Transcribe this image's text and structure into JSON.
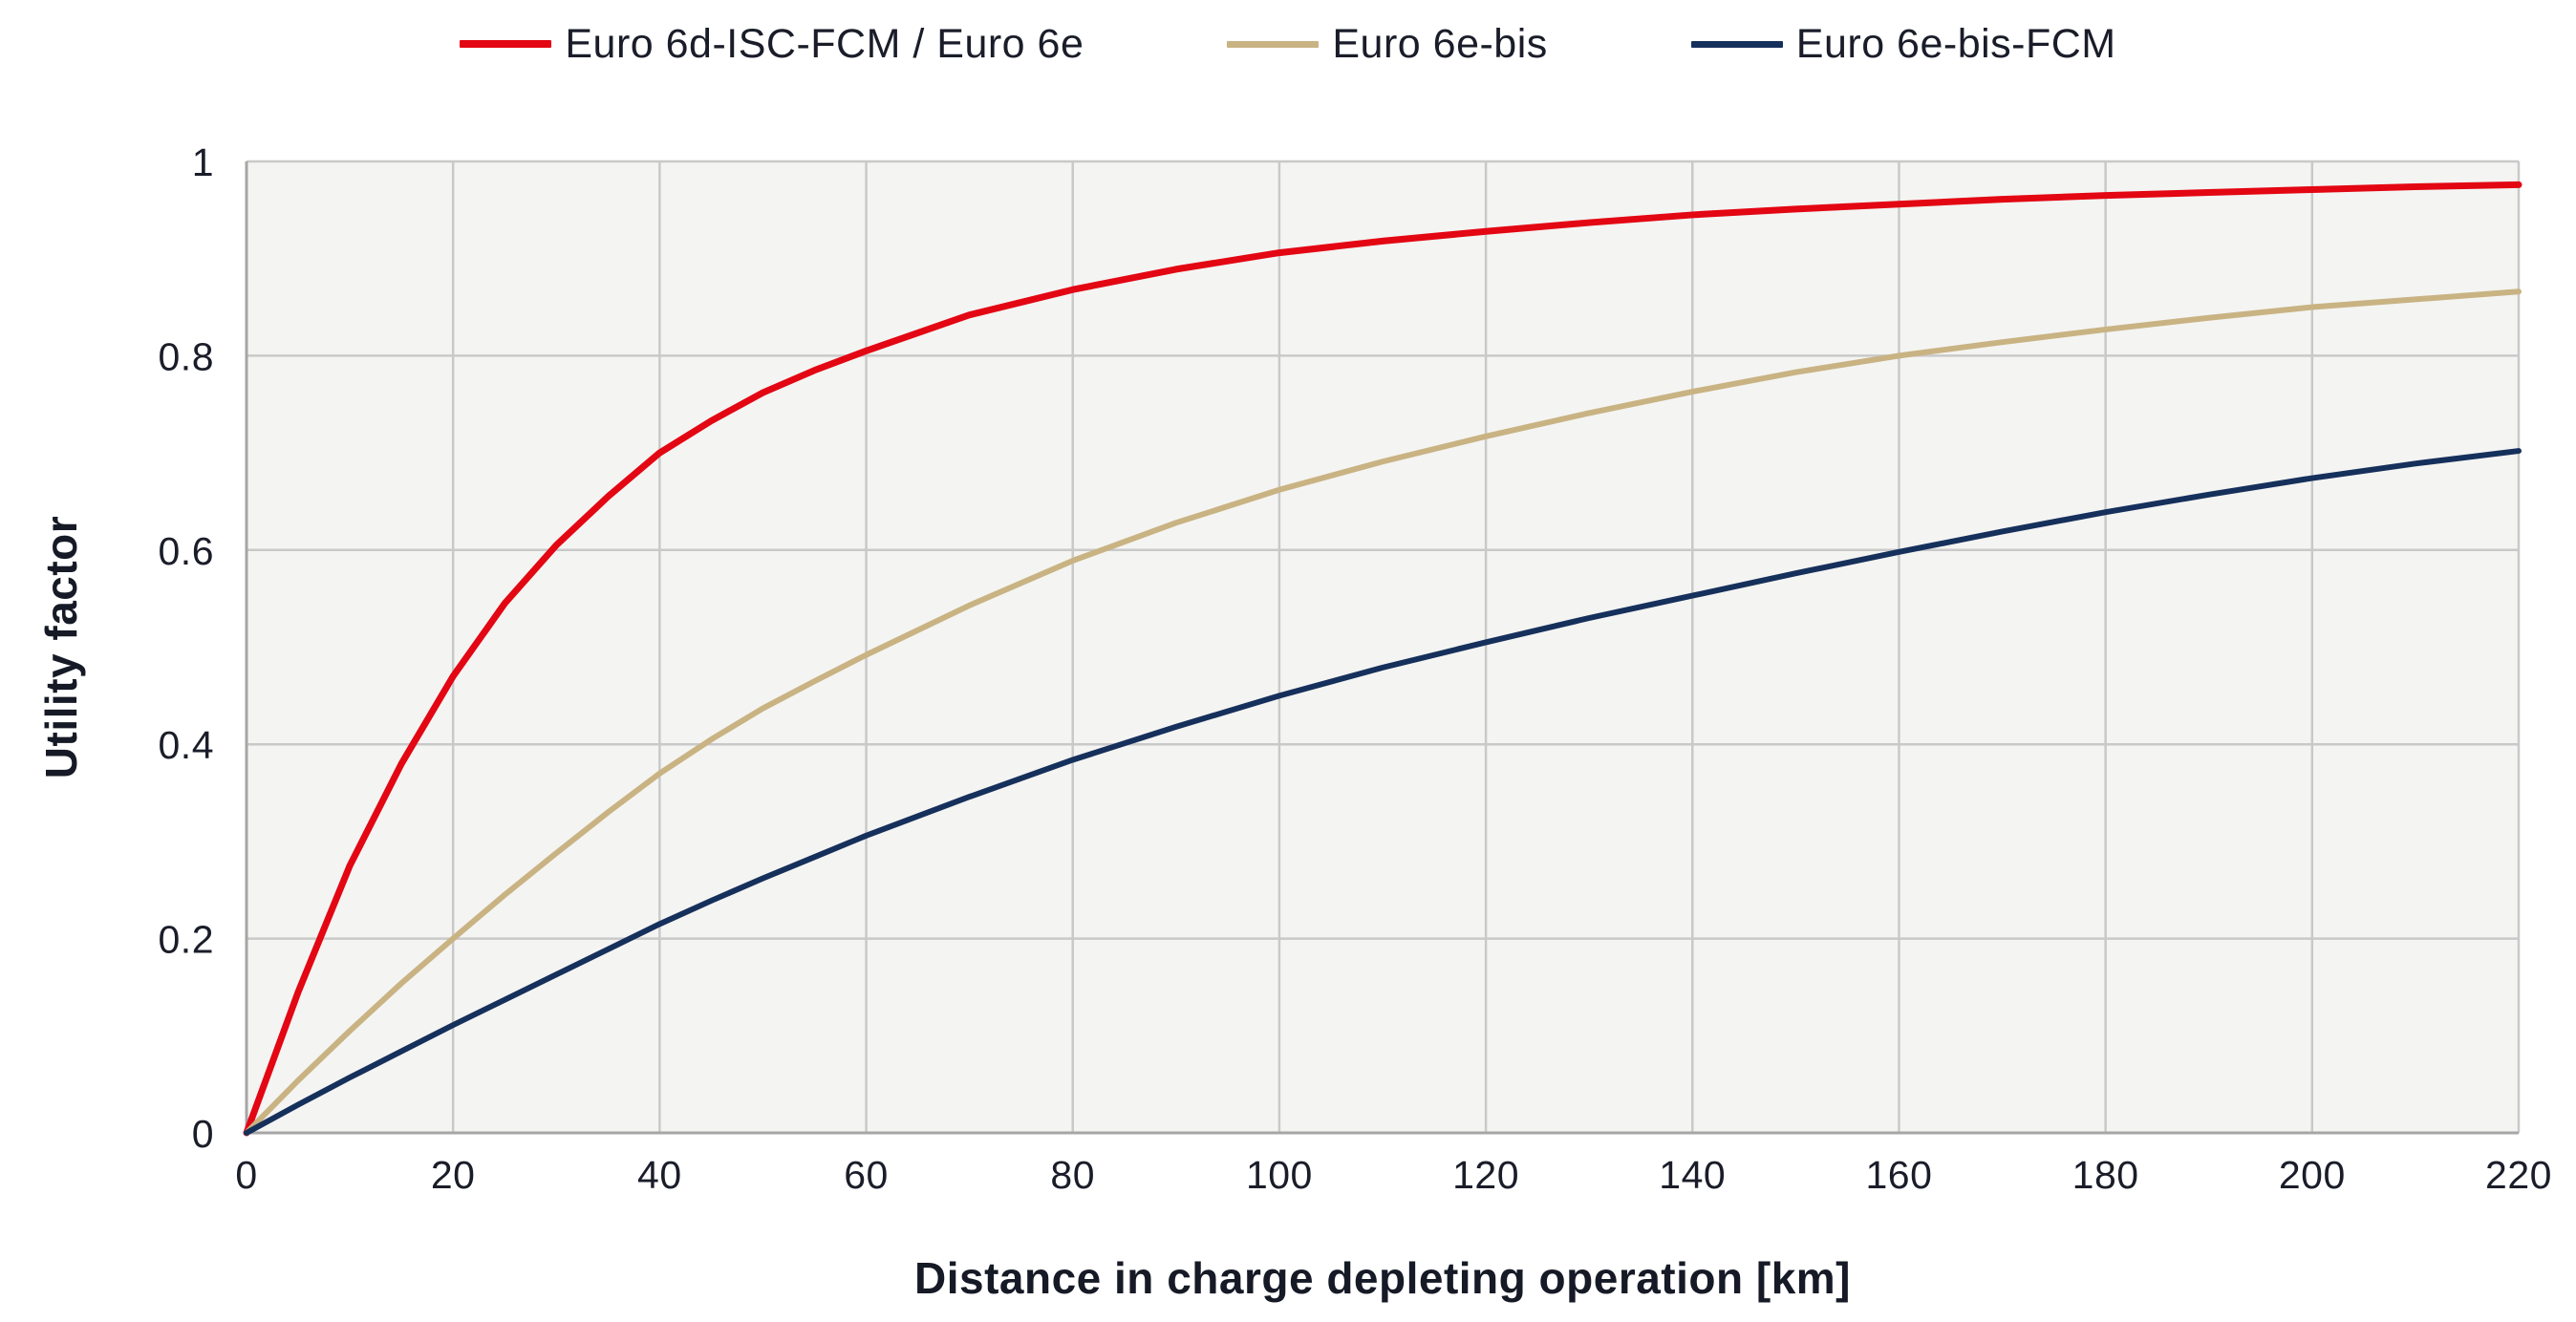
{
  "style": {
    "plot_bg": "#f4f4f2",
    "grid_color": "#c9c9c9",
    "axis_color": "#a6a6a6",
    "text_color": "#1a1d29",
    "title_color": "#161a26"
  },
  "chart_data": {
    "type": "line",
    "title": "",
    "xlabel": "Distance in charge depleting operation [km]",
    "ylabel": "Utility factor",
    "xlim": [
      0,
      220
    ],
    "ylim": [
      0,
      1
    ],
    "xticks": [
      0,
      20,
      40,
      60,
      80,
      100,
      120,
      140,
      160,
      180,
      200,
      220
    ],
    "xtick_labels": [
      "0",
      "20",
      "40",
      "60",
      "80",
      "100",
      "120",
      "140",
      "160",
      "180",
      "200",
      "220"
    ],
    "yticks": [
      0,
      0.2,
      0.4,
      0.6,
      0.8,
      1
    ],
    "ytick_labels": [
      "0",
      "0.2",
      "0.4",
      "0.6",
      "0.8",
      "1"
    ],
    "grid": true,
    "legend_position": "top",
    "x": [
      0,
      5,
      10,
      15,
      20,
      25,
      30,
      35,
      40,
      45,
      50,
      55,
      60,
      70,
      80,
      90,
      100,
      110,
      120,
      130,
      140,
      150,
      160,
      170,
      180,
      190,
      200,
      210,
      220
    ],
    "series": [
      {
        "name": "Euro 6d-ISC-FCM / Euro 6e",
        "color": "#e30613",
        "width": 7,
        "values": [
          0,
          0.145,
          0.275,
          0.38,
          0.47,
          0.545,
          0.605,
          0.655,
          0.7,
          0.733,
          0.762,
          0.785,
          0.805,
          0.842,
          0.868,
          0.889,
          0.906,
          0.918,
          0.928,
          0.937,
          0.945,
          0.951,
          0.956,
          0.961,
          0.965,
          0.968,
          0.971,
          0.974,
          0.976
        ]
      },
      {
        "name": "Euro 6e-bis",
        "color": "#c9b383",
        "width": 6,
        "values": [
          0,
          0.054,
          0.105,
          0.154,
          0.2,
          0.245,
          0.288,
          0.33,
          0.37,
          0.405,
          0.437,
          0.465,
          0.492,
          0.543,
          0.589,
          0.628,
          0.662,
          0.691,
          0.717,
          0.741,
          0.763,
          0.783,
          0.8,
          0.814,
          0.827,
          0.839,
          0.85,
          0.858,
          0.866
        ]
      },
      {
        "name": "Euro 6e-bis-FCM",
        "color": "#16305c",
        "width": 6,
        "values": [
          0,
          0.029,
          0.057,
          0.084,
          0.111,
          0.137,
          0.163,
          0.189,
          0.215,
          0.239,
          0.262,
          0.284,
          0.306,
          0.346,
          0.384,
          0.418,
          0.45,
          0.479,
          0.505,
          0.53,
          0.553,
          0.576,
          0.598,
          0.619,
          0.639,
          0.657,
          0.674,
          0.689,
          0.702
        ]
      }
    ]
  }
}
